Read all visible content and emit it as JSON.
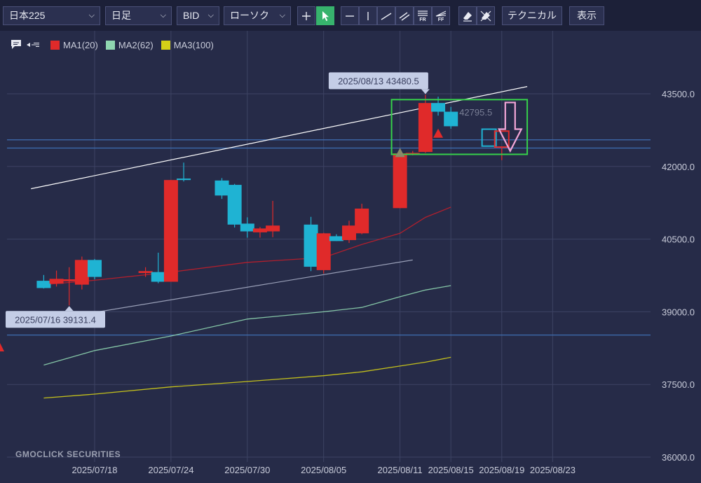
{
  "toolbar": {
    "symbol": "日本225",
    "timeframe": "日足",
    "price_type": "BID",
    "chart_style": "ローソク",
    "technical_label": "テクニカル",
    "display_label": "表示",
    "tool_labels": {
      "fr": "FR",
      "ff": "FF"
    }
  },
  "legend": [
    {
      "label": "MA1(20)",
      "color": "#e02a2a"
    },
    {
      "label": "MA2(62)",
      "color": "#8fd6b0"
    },
    {
      "label": "MA3(100)",
      "color": "#d4cf17"
    }
  ],
  "watermark": "GMOCLICK SECURITIES",
  "chart_data": {
    "type": "candlestick",
    "y_axis": {
      "min": 36000,
      "max": 44500,
      "ticks": [
        36000.0,
        37500.0,
        39000.0,
        40500.0,
        42000.0,
        43500.0
      ],
      "position": "right"
    },
    "x_axis": {
      "ticks": [
        {
          "label": "2025/07/18",
          "date": "2025-07-18"
        },
        {
          "label": "2025/07/24",
          "date": "2025-07-24"
        },
        {
          "label": "2025/07/30",
          "date": "2025-07-30"
        },
        {
          "label": "2025/08/05",
          "date": "2025-08-05"
        },
        {
          "label": "2025/08/11",
          "date": "2025-08-11"
        },
        {
          "label": "2025/08/15",
          "date": "2025-08-15"
        },
        {
          "label": "2025/08/19",
          "date": "2025-08-19"
        },
        {
          "label": "2025/08/23",
          "date": "2025-08-23"
        }
      ]
    },
    "colors": {
      "up": "#e02a2a",
      "down": "#1fb3d3",
      "grid": "#3d4363",
      "axis_text": "#c9ccda"
    },
    "candles": [
      {
        "date": "2025-07-14",
        "open": 39640,
        "high": 39760,
        "low": 39480,
        "close": 39490
      },
      {
        "date": "2025-07-15",
        "open": 39580,
        "high": 39850,
        "low": 39520,
        "close": 39680
      },
      {
        "date": "2025-07-16",
        "open": 39630,
        "high": 39920,
        "low": 39131.4,
        "close": 39670
      },
      {
        "date": "2025-07-17",
        "open": 39560,
        "high": 40140,
        "low": 39460,
        "close": 40070
      },
      {
        "date": "2025-07-18",
        "open": 40070,
        "high": 40090,
        "low": 39670,
        "close": 39720
      },
      {
        "date": "2025-07-22",
        "open": 39800,
        "high": 39920,
        "low": 39720,
        "close": 39840
      },
      {
        "date": "2025-07-23",
        "open": 39820,
        "high": 40220,
        "low": 39590,
        "close": 39620
      },
      {
        "date": "2025-07-24",
        "open": 39620,
        "high": 41720,
        "low": 39620,
        "close": 41720
      },
      {
        "date": "2025-07-25",
        "open": 41750,
        "high": 42080,
        "low": 41690,
        "close": 41720
      },
      {
        "date": "2025-07-28",
        "open": 41710,
        "high": 41760,
        "low": 41330,
        "close": 41400
      },
      {
        "date": "2025-07-29",
        "open": 41620,
        "high": 41640,
        "low": 40740,
        "close": 40800
      },
      {
        "date": "2025-07-30",
        "open": 40820,
        "high": 40950,
        "low": 40530,
        "close": 40660
      },
      {
        "date": "2025-07-31",
        "open": 40640,
        "high": 40750,
        "low": 40530,
        "close": 40720
      },
      {
        "date": "2025-08-01",
        "open": 40660,
        "high": 41290,
        "low": 40540,
        "close": 40780
      },
      {
        "date": "2025-08-04",
        "open": 40800,
        "high": 40960,
        "low": 39840,
        "close": 39930
      },
      {
        "date": "2025-08-05",
        "open": 39860,
        "high": 40630,
        "low": 39790,
        "close": 40620
      },
      {
        "date": "2025-08-06",
        "open": 40560,
        "high": 40600,
        "low": 40460,
        "close": 40460
      },
      {
        "date": "2025-08-07",
        "open": 40480,
        "high": 40880,
        "low": 40420,
        "close": 40780
      },
      {
        "date": "2025-08-08",
        "open": 40620,
        "high": 41230,
        "low": 40600,
        "close": 41130
      },
      {
        "date": "2025-08-11",
        "open": 41140,
        "high": 42370,
        "low": 41140,
        "close": 42270
      },
      {
        "date": "2025-08-12",
        "open": 42270,
        "high": 42320,
        "low": 42230,
        "close": 42280
      },
      {
        "date": "2025-08-13",
        "open": 42300,
        "high": 43480.5,
        "low": 42280,
        "close": 43310
      },
      {
        "date": "2025-08-14",
        "open": 43310,
        "high": 43440,
        "low": 43050,
        "close": 43130
      },
      {
        "date": "2025-08-15",
        "open": 43130,
        "high": 43230,
        "low": 42780,
        "close": 42830
      }
    ],
    "hollow_candles": [
      {
        "date": "2025-08-18",
        "color": "#1fb3d3",
        "open": 42770,
        "close": 42420
      },
      {
        "date": "2025-08-19",
        "color": "#e02a2a",
        "open": 42400,
        "close": 42730,
        "low": 42130
      }
    ],
    "moving_averages": [
      {
        "name": "MA1(20)",
        "color": "#c01e2a",
        "points": [
          [
            "2025-07-14",
            39560
          ],
          [
            "2025-07-18",
            39650
          ],
          [
            "2025-07-24",
            39820
          ],
          [
            "2025-07-30",
            40020
          ],
          [
            "2025-08-05",
            40120
          ],
          [
            "2025-08-08",
            40390
          ],
          [
            "2025-08-11",
            40620
          ],
          [
            "2025-08-13",
            40950
          ],
          [
            "2025-08-15",
            41160
          ]
        ]
      },
      {
        "name": "MA2(62)",
        "color": "#8fd6b0",
        "points": [
          [
            "2025-07-14",
            37900
          ],
          [
            "2025-07-18",
            38200
          ],
          [
            "2025-07-24",
            38500
          ],
          [
            "2025-07-30",
            38850
          ],
          [
            "2025-08-05",
            39000
          ],
          [
            "2025-08-08",
            39090
          ],
          [
            "2025-08-11",
            39310
          ],
          [
            "2025-08-13",
            39450
          ],
          [
            "2025-08-15",
            39540
          ]
        ]
      },
      {
        "name": "MA3(100)",
        "color": "#d4cf17",
        "points": [
          [
            "2025-07-14",
            37220
          ],
          [
            "2025-07-18",
            37300
          ],
          [
            "2025-07-24",
            37450
          ],
          [
            "2025-07-30",
            37560
          ],
          [
            "2025-08-05",
            37680
          ],
          [
            "2025-08-08",
            37760
          ],
          [
            "2025-08-11",
            37880
          ],
          [
            "2025-08-13",
            37960
          ],
          [
            "2025-08-15",
            38060
          ]
        ]
      }
    ],
    "trend_lines": [
      {
        "color": "#ffffff",
        "from": [
          "2025-07-13",
          41540
        ],
        "to": [
          "2025-08-21",
          43650
        ]
      },
      {
        "color": "#9aa0b8",
        "from": [
          "2025-07-16",
          38900
        ],
        "to": [
          "2025-08-12",
          40070
        ]
      }
    ],
    "horizontal_lines": [
      {
        "value": 42550,
        "color": "#3f6fb4"
      },
      {
        "value": 42380,
        "color": "#3f6fb4"
      },
      {
        "value": 38520,
        "color": "#3f6fb4"
      }
    ],
    "rectangle": {
      "from": [
        "2025-08-11",
        43380
      ],
      "to": [
        "2025-08-21",
        42250
      ],
      "color": "#36d04a"
    },
    "arrow": {
      "date": "2025-08-19",
      "top": 43320,
      "bottom": 42320,
      "color": "#f2a6d7"
    },
    "signal_markers": [
      {
        "date": "2025-08-14",
        "value": 42680,
        "color": "#e02a2a"
      },
      {
        "date": "2025-08-11",
        "value": 42280,
        "color": "#8a8a6a"
      }
    ],
    "callouts": [
      {
        "text": "2025/08/13 43480.5",
        "date": "2025-08-13",
        "value": 43480.5,
        "side": "above"
      },
      {
        "text": "2025/07/16 39131.4",
        "date": "2025-07-16",
        "value": 39131.4,
        "side": "below"
      }
    ],
    "faint_labels": [
      "42795.5"
    ]
  }
}
